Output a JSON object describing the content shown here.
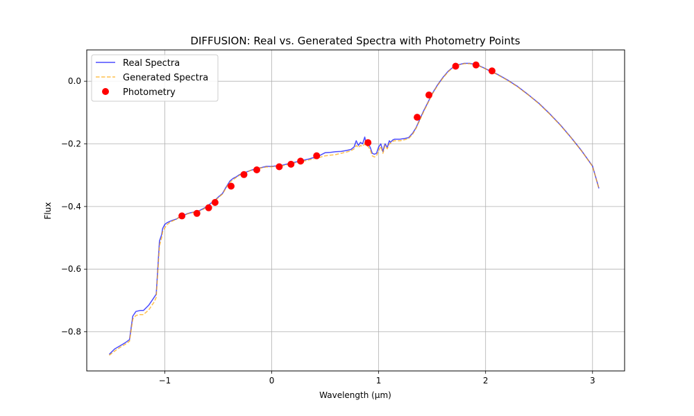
{
  "chart_data": {
    "type": "line",
    "title": "DIFFUSION: Real vs. Generated Spectra with Photometry Points",
    "xlabel": "Wavelength (μm)",
    "ylabel": "Flux",
    "xlim": [
      -1.73,
      3.3
    ],
    "ylim": [
      -0.925,
      0.1
    ],
    "xticks": [
      -1,
      0,
      1,
      2,
      3
    ],
    "xtick_labels": [
      "−1",
      "0",
      "1",
      "2",
      "3"
    ],
    "yticks": [
      -0.8,
      -0.6,
      -0.4,
      -0.2,
      0.0
    ],
    "ytick_labels": [
      "−0.8",
      "−0.6",
      "−0.4",
      "−0.2",
      "0.0"
    ],
    "grid": true,
    "legend_position": "top-left",
    "series": [
      {
        "name": "Real Spectra",
        "kind": "line",
        "color": "#0000ff",
        "style": "solid",
        "x": [
          -1.52,
          -1.47,
          -1.42,
          -1.37,
          -1.33,
          -1.3,
          -1.27,
          -1.23,
          -1.2,
          -1.15,
          -1.12,
          -1.1,
          -1.08,
          -1.05,
          -1.03,
          -1.02,
          -1.0,
          -0.98,
          -0.95,
          -0.92,
          -0.89,
          -0.87,
          -0.85,
          -0.82,
          -0.79,
          -0.76,
          -0.73,
          -0.7,
          -0.67,
          -0.63,
          -0.6,
          -0.57,
          -0.54,
          -0.5,
          -0.46,
          -0.43,
          -0.39,
          -0.36,
          -0.33,
          -0.3,
          -0.26,
          -0.2,
          -0.15,
          -0.1,
          -0.05,
          0.0,
          0.05,
          0.1,
          0.15,
          0.2,
          0.25,
          0.3,
          0.35,
          0.4,
          0.45,
          0.5,
          0.55,
          0.6,
          0.65,
          0.7,
          0.74,
          0.77,
          0.79,
          0.81,
          0.83,
          0.85,
          0.87,
          0.88,
          0.9,
          0.92,
          0.94,
          0.96,
          0.98,
          1.0,
          1.02,
          1.04,
          1.05,
          1.06,
          1.08,
          1.1,
          1.11,
          1.13,
          1.15,
          1.2,
          1.24,
          1.28,
          1.32,
          1.35,
          1.38,
          1.42,
          1.46,
          1.5,
          1.55,
          1.6,
          1.65,
          1.7,
          1.75,
          1.8,
          1.85,
          1.9,
          1.95,
          2.0,
          2.05,
          2.1,
          2.2,
          2.3,
          2.4,
          2.5,
          2.6,
          2.7,
          2.8,
          2.9,
          3.0,
          3.06
        ],
        "y": [
          -0.872,
          -0.855,
          -0.845,
          -0.835,
          -0.825,
          -0.75,
          -0.735,
          -0.732,
          -0.732,
          -0.715,
          -0.7,
          -0.69,
          -0.68,
          -0.51,
          -0.49,
          -0.47,
          -0.457,
          -0.452,
          -0.447,
          -0.443,
          -0.44,
          -0.435,
          -0.432,
          -0.428,
          -0.423,
          -0.42,
          -0.418,
          -0.416,
          -0.412,
          -0.405,
          -0.398,
          -0.39,
          -0.383,
          -0.37,
          -0.358,
          -0.34,
          -0.318,
          -0.31,
          -0.305,
          -0.298,
          -0.293,
          -0.285,
          -0.28,
          -0.276,
          -0.272,
          -0.272,
          -0.27,
          -0.268,
          -0.264,
          -0.26,
          -0.256,
          -0.252,
          -0.248,
          -0.243,
          -0.237,
          -0.228,
          -0.227,
          -0.225,
          -0.224,
          -0.221,
          -0.218,
          -0.21,
          -0.19,
          -0.205,
          -0.195,
          -0.2,
          -0.178,
          -0.195,
          -0.2,
          -0.21,
          -0.23,
          -0.233,
          -0.23,
          -0.21,
          -0.2,
          -0.225,
          -0.21,
          -0.2,
          -0.212,
          -0.19,
          -0.195,
          -0.188,
          -0.185,
          -0.185,
          -0.183,
          -0.18,
          -0.165,
          -0.148,
          -0.125,
          -0.095,
          -0.068,
          -0.04,
          -0.012,
          0.012,
          0.032,
          0.046,
          0.053,
          0.057,
          0.057,
          0.054,
          0.048,
          0.04,
          0.031,
          0.024,
          0.005,
          -0.017,
          -0.043,
          -0.071,
          -0.104,
          -0.14,
          -0.18,
          -0.223,
          -0.271,
          -0.342
        ]
      },
      {
        "name": "Generated Spectra",
        "kind": "line",
        "color": "#ffa500",
        "style": "dashed",
        "x": [
          -1.52,
          -1.47,
          -1.42,
          -1.37,
          -1.33,
          -1.3,
          -1.27,
          -1.23,
          -1.2,
          -1.15,
          -1.12,
          -1.1,
          -1.08,
          -1.05,
          -1.03,
          -1.02,
          -1.0,
          -0.98,
          -0.95,
          -0.92,
          -0.89,
          -0.87,
          -0.85,
          -0.82,
          -0.79,
          -0.76,
          -0.73,
          -0.7,
          -0.67,
          -0.63,
          -0.6,
          -0.57,
          -0.54,
          -0.5,
          -0.46,
          -0.43,
          -0.39,
          -0.36,
          -0.33,
          -0.3,
          -0.26,
          -0.2,
          -0.15,
          -0.1,
          -0.05,
          0.0,
          0.05,
          0.1,
          0.15,
          0.2,
          0.25,
          0.3,
          0.35,
          0.4,
          0.45,
          0.5,
          0.55,
          0.6,
          0.65,
          0.7,
          0.74,
          0.77,
          0.79,
          0.81,
          0.83,
          0.85,
          0.87,
          0.88,
          0.9,
          0.92,
          0.94,
          0.96,
          0.98,
          1.0,
          1.02,
          1.04,
          1.05,
          1.06,
          1.08,
          1.1,
          1.11,
          1.13,
          1.15,
          1.2,
          1.24,
          1.28,
          1.32,
          1.35,
          1.38,
          1.42,
          1.46,
          1.5,
          1.55,
          1.6,
          1.65,
          1.7,
          1.75,
          1.8,
          1.85,
          1.9,
          1.95,
          2.0,
          2.05,
          2.1,
          2.2,
          2.3,
          2.4,
          2.5,
          2.6,
          2.7,
          2.8,
          2.9,
          3.0,
          3.06
        ],
        "y": [
          -0.875,
          -0.862,
          -0.85,
          -0.84,
          -0.83,
          -0.76,
          -0.748,
          -0.745,
          -0.745,
          -0.73,
          -0.715,
          -0.705,
          -0.69,
          -0.525,
          -0.5,
          -0.48,
          -0.468,
          -0.458,
          -0.45,
          -0.445,
          -0.44,
          -0.436,
          -0.433,
          -0.428,
          -0.424,
          -0.421,
          -0.419,
          -0.417,
          -0.414,
          -0.407,
          -0.4,
          -0.392,
          -0.385,
          -0.372,
          -0.36,
          -0.342,
          -0.322,
          -0.314,
          -0.307,
          -0.3,
          -0.294,
          -0.285,
          -0.28,
          -0.277,
          -0.274,
          -0.273,
          -0.271,
          -0.27,
          -0.266,
          -0.262,
          -0.258,
          -0.255,
          -0.251,
          -0.247,
          -0.243,
          -0.238,
          -0.236,
          -0.234,
          -0.23,
          -0.226,
          -0.222,
          -0.216,
          -0.205,
          -0.212,
          -0.205,
          -0.208,
          -0.2,
          -0.205,
          -0.208,
          -0.218,
          -0.238,
          -0.242,
          -0.238,
          -0.222,
          -0.208,
          -0.23,
          -0.218,
          -0.205,
          -0.216,
          -0.2,
          -0.198,
          -0.192,
          -0.19,
          -0.19,
          -0.187,
          -0.183,
          -0.168,
          -0.15,
          -0.128,
          -0.098,
          -0.07,
          -0.042,
          -0.014,
          0.01,
          0.03,
          0.045,
          0.052,
          0.056,
          0.056,
          0.053,
          0.047,
          0.039,
          0.031,
          0.023,
          0.004,
          -0.018,
          -0.044,
          -0.072,
          -0.105,
          -0.141,
          -0.181,
          -0.224,
          -0.272,
          -0.343
        ]
      },
      {
        "name": "Photometry",
        "kind": "scatter",
        "color": "#ff0000",
        "x": [
          -0.84,
          -0.7,
          -0.59,
          -0.53,
          -0.38,
          -0.26,
          -0.14,
          0.07,
          0.18,
          0.27,
          0.42,
          0.9,
          1.36,
          1.47,
          1.72,
          1.91,
          2.06
        ],
        "y": [
          -0.43,
          -0.422,
          -0.404,
          -0.387,
          -0.335,
          -0.298,
          -0.283,
          -0.273,
          -0.265,
          -0.255,
          -0.238,
          -0.196,
          -0.115,
          -0.044,
          0.048,
          0.052,
          0.033
        ]
      }
    ]
  }
}
